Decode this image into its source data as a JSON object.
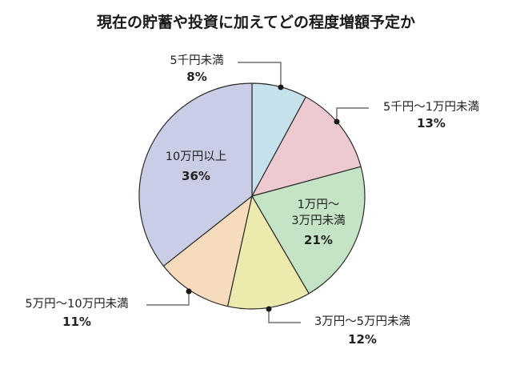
{
  "title": "現在の貯蓄や投資に加えてどの程度増額予定か",
  "chart_data": {
    "type": "pie",
    "title": "現在の貯蓄や投資に加えてどの程度増額予定か",
    "start_angle": "12 o'clock",
    "direction": "clockwise",
    "categories": [
      "5千円未満",
      "5千円〜1万円未満",
      "1万円〜3万円未満",
      "3万円〜5万円未満",
      "5万円〜10万円未満",
      "10万円以上"
    ],
    "values": [
      8,
      13,
      21,
      12,
      11,
      36
    ],
    "unit": "%",
    "colors": [
      "#c5e1eb",
      "#edc9d0",
      "#c5e3c5",
      "#eceaac",
      "#f6dcbd",
      "#c9cde5"
    ]
  },
  "labels": {
    "s0": {
      "name": "5千円未満",
      "pct": "8%"
    },
    "s1": {
      "name": "5千円〜1万円未満",
      "pct": "13%"
    },
    "s2": {
      "name1": "1万円〜",
      "name2": "3万円未満",
      "pct": "21%"
    },
    "s3": {
      "name": "3万円〜5万円未満",
      "pct": "12%"
    },
    "s4": {
      "name": "5万円〜10万円未満",
      "pct": "11%"
    },
    "s5": {
      "name": "10万円以上",
      "pct": "36%"
    }
  }
}
